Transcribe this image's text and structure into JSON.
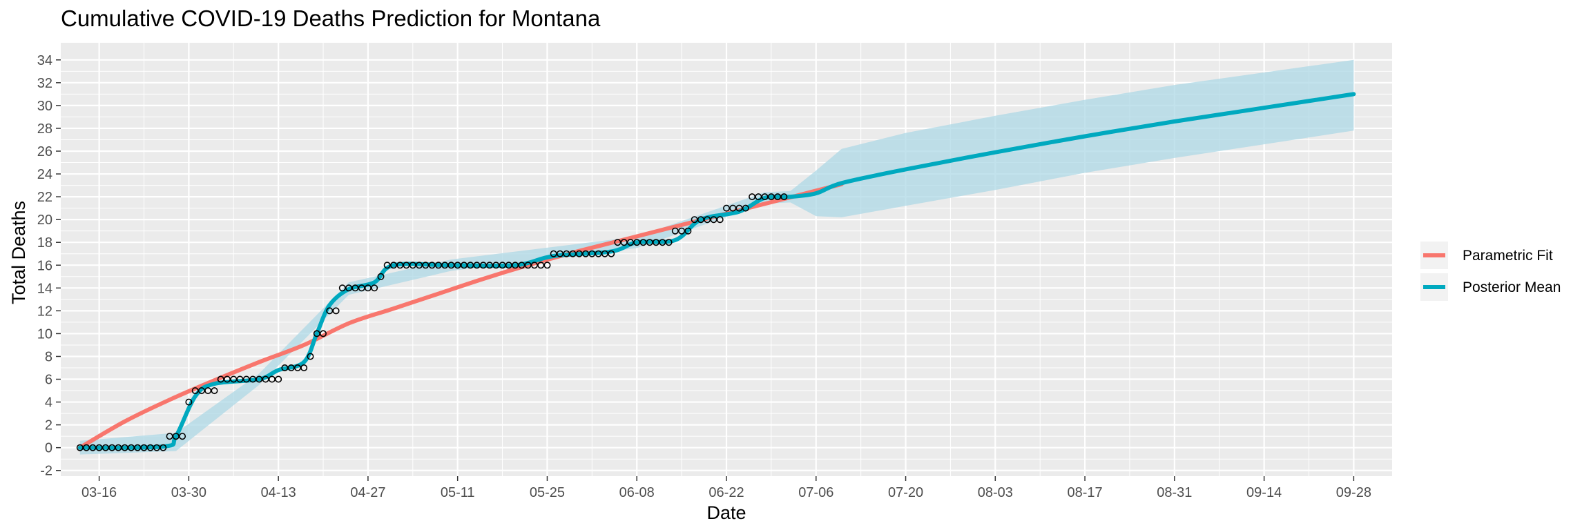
{
  "chart_data": {
    "type": "line",
    "title": "Cumulative COVID-19 Deaths Prediction for Montana",
    "xlabel": "Date",
    "ylabel": "Total Deaths",
    "x_start": "2020-03-13",
    "x_end": "2020-09-28",
    "xlim": [
      "2020-03-10",
      "2020-10-04"
    ],
    "ylim": [
      -2.5,
      35.5
    ],
    "grid": true,
    "legend_position": "right",
    "x_ticks": [
      "03-16",
      "03-30",
      "04-13",
      "04-27",
      "05-11",
      "05-25",
      "06-08",
      "06-22",
      "07-06",
      "07-20",
      "08-03",
      "08-17",
      "08-31",
      "09-14",
      "09-28"
    ],
    "y_ticks": [
      -2,
      0,
      2,
      4,
      6,
      8,
      10,
      12,
      14,
      16,
      18,
      20,
      22,
      24,
      26,
      28,
      30,
      32,
      34
    ],
    "series": [
      {
        "name": "Parametric Fit",
        "color": "#F8766D",
        "points": [
          [
            "2020-03-13",
            0.0
          ],
          [
            "2020-03-20",
            2.3
          ],
          [
            "2020-03-27",
            4.2
          ],
          [
            "2020-04-03",
            5.9
          ],
          [
            "2020-04-10",
            7.5
          ],
          [
            "2020-04-17",
            9.0
          ],
          [
            "2020-04-24",
            10.9
          ],
          [
            "2020-05-01",
            12.2
          ],
          [
            "2020-05-08",
            13.5
          ],
          [
            "2020-05-15",
            14.8
          ],
          [
            "2020-05-22",
            16.0
          ],
          [
            "2020-05-29",
            17.1
          ],
          [
            "2020-06-05",
            18.1
          ],
          [
            "2020-06-12",
            19.1
          ],
          [
            "2020-06-19",
            20.1
          ],
          [
            "2020-06-26",
            21.1
          ],
          [
            "2020-07-03",
            22.1
          ],
          [
            "2020-07-10",
            23.1
          ]
        ]
      },
      {
        "name": "Posterior Mean",
        "color": "#00A9BF",
        "points": [
          [
            "2020-03-13",
            0.0
          ],
          [
            "2020-03-26",
            0.1
          ],
          [
            "2020-03-28",
            1.0
          ],
          [
            "2020-03-31",
            4.5
          ],
          [
            "2020-04-03",
            5.6
          ],
          [
            "2020-04-10",
            6.0
          ],
          [
            "2020-04-13",
            6.8
          ],
          [
            "2020-04-17",
            7.5
          ],
          [
            "2020-04-19",
            10.0
          ],
          [
            "2020-04-21",
            12.5
          ],
          [
            "2020-04-24",
            13.9
          ],
          [
            "2020-04-28",
            14.5
          ],
          [
            "2020-05-01",
            16.0
          ],
          [
            "2020-05-10",
            16.0
          ],
          [
            "2020-05-20",
            16.0
          ],
          [
            "2020-05-26",
            16.8
          ],
          [
            "2020-06-04",
            17.2
          ],
          [
            "2020-06-08",
            18.0
          ],
          [
            "2020-06-14",
            18.2
          ],
          [
            "2020-06-18",
            20.0
          ],
          [
            "2020-06-24",
            20.7
          ],
          [
            "2020-06-28",
            21.9
          ],
          [
            "2020-07-02",
            22.0
          ],
          [
            "2020-07-06",
            22.3
          ],
          [
            "2020-07-10",
            23.2
          ],
          [
            "2020-07-20",
            24.4
          ],
          [
            "2020-08-03",
            25.9
          ],
          [
            "2020-08-17",
            27.3
          ],
          [
            "2020-08-31",
            28.6
          ],
          [
            "2020-09-14",
            29.8
          ],
          [
            "2020-09-28",
            31.0
          ]
        ]
      }
    ],
    "credible_band": {
      "color": "#ADD8E6",
      "points": [
        [
          "2020-03-13",
          -0.6,
          0.6
        ],
        [
          "2020-03-28",
          -0.3,
          1.3
        ],
        [
          "2020-04-10",
          5.5,
          6.5
        ],
        [
          "2020-04-24",
          13.4,
          14.5
        ],
        [
          "2020-05-10",
          15.5,
          16.5
        ],
        [
          "2020-06-08",
          17.5,
          18.5
        ],
        [
          "2020-06-28",
          21.4,
          22.4
        ],
        [
          "2020-07-02",
          21.5,
          22.5
        ],
        [
          "2020-07-06",
          20.3,
          24.3
        ],
        [
          "2020-07-10",
          20.2,
          26.2
        ],
        [
          "2020-07-20",
          21.2,
          27.6
        ],
        [
          "2020-08-03",
          22.6,
          29.1
        ],
        [
          "2020-08-17",
          24.1,
          30.5
        ],
        [
          "2020-08-31",
          25.4,
          31.8
        ],
        [
          "2020-09-14",
          26.6,
          32.9
        ],
        [
          "2020-09-28",
          27.8,
          34.0
        ]
      ]
    },
    "observed": {
      "points": [
        [
          "2020-03-13",
          0
        ],
        [
          "2020-03-14",
          0
        ],
        [
          "2020-03-15",
          0
        ],
        [
          "2020-03-16",
          0
        ],
        [
          "2020-03-17",
          0
        ],
        [
          "2020-03-18",
          0
        ],
        [
          "2020-03-19",
          0
        ],
        [
          "2020-03-20",
          0
        ],
        [
          "2020-03-21",
          0
        ],
        [
          "2020-03-22",
          0
        ],
        [
          "2020-03-23",
          0
        ],
        [
          "2020-03-24",
          0
        ],
        [
          "2020-03-25",
          0
        ],
        [
          "2020-03-26",
          0
        ],
        [
          "2020-03-27",
          1
        ],
        [
          "2020-03-28",
          1
        ],
        [
          "2020-03-29",
          1
        ],
        [
          "2020-03-30",
          4
        ],
        [
          "2020-03-31",
          5
        ],
        [
          "2020-04-01",
          5
        ],
        [
          "2020-04-02",
          5
        ],
        [
          "2020-04-03",
          5
        ],
        [
          "2020-04-04",
          6
        ],
        [
          "2020-04-05",
          6
        ],
        [
          "2020-04-06",
          6
        ],
        [
          "2020-04-07",
          6
        ],
        [
          "2020-04-08",
          6
        ],
        [
          "2020-04-09",
          6
        ],
        [
          "2020-04-10",
          6
        ],
        [
          "2020-04-11",
          6
        ],
        [
          "2020-04-12",
          6
        ],
        [
          "2020-04-13",
          6
        ],
        [
          "2020-04-14",
          7
        ],
        [
          "2020-04-15",
          7
        ],
        [
          "2020-04-16",
          7
        ],
        [
          "2020-04-17",
          7
        ],
        [
          "2020-04-18",
          8
        ],
        [
          "2020-04-19",
          10
        ],
        [
          "2020-04-20",
          10
        ],
        [
          "2020-04-21",
          12
        ],
        [
          "2020-04-22",
          12
        ],
        [
          "2020-04-23",
          14
        ],
        [
          "2020-04-24",
          14
        ],
        [
          "2020-04-25",
          14
        ],
        [
          "2020-04-26",
          14
        ],
        [
          "2020-04-27",
          14
        ],
        [
          "2020-04-28",
          14
        ],
        [
          "2020-04-29",
          15
        ],
        [
          "2020-04-30",
          16
        ],
        [
          "2020-05-01",
          16
        ],
        [
          "2020-05-02",
          16
        ],
        [
          "2020-05-03",
          16
        ],
        [
          "2020-05-04",
          16
        ],
        [
          "2020-05-05",
          16
        ],
        [
          "2020-05-06",
          16
        ],
        [
          "2020-05-07",
          16
        ],
        [
          "2020-05-08",
          16
        ],
        [
          "2020-05-09",
          16
        ],
        [
          "2020-05-10",
          16
        ],
        [
          "2020-05-11",
          16
        ],
        [
          "2020-05-12",
          16
        ],
        [
          "2020-05-13",
          16
        ],
        [
          "2020-05-14",
          16
        ],
        [
          "2020-05-15",
          16
        ],
        [
          "2020-05-16",
          16
        ],
        [
          "2020-05-17",
          16
        ],
        [
          "2020-05-18",
          16
        ],
        [
          "2020-05-19",
          16
        ],
        [
          "2020-05-20",
          16
        ],
        [
          "2020-05-21",
          16
        ],
        [
          "2020-05-22",
          16
        ],
        [
          "2020-05-23",
          16
        ],
        [
          "2020-05-24",
          16
        ],
        [
          "2020-05-25",
          16
        ],
        [
          "2020-05-26",
          17
        ],
        [
          "2020-05-27",
          17
        ],
        [
          "2020-05-28",
          17
        ],
        [
          "2020-05-29",
          17
        ],
        [
          "2020-05-30",
          17
        ],
        [
          "2020-05-31",
          17
        ],
        [
          "2020-06-01",
          17
        ],
        [
          "2020-06-02",
          17
        ],
        [
          "2020-06-03",
          17
        ],
        [
          "2020-06-04",
          17
        ],
        [
          "2020-06-05",
          18
        ],
        [
          "2020-06-06",
          18
        ],
        [
          "2020-06-07",
          18
        ],
        [
          "2020-06-08",
          18
        ],
        [
          "2020-06-09",
          18
        ],
        [
          "2020-06-10",
          18
        ],
        [
          "2020-06-11",
          18
        ],
        [
          "2020-06-12",
          18
        ],
        [
          "2020-06-13",
          18
        ],
        [
          "2020-06-14",
          19
        ],
        [
          "2020-06-15",
          19
        ],
        [
          "2020-06-16",
          19
        ],
        [
          "2020-06-17",
          20
        ],
        [
          "2020-06-18",
          20
        ],
        [
          "2020-06-19",
          20
        ],
        [
          "2020-06-20",
          20
        ],
        [
          "2020-06-21",
          20
        ],
        [
          "2020-06-22",
          21
        ],
        [
          "2020-06-23",
          21
        ],
        [
          "2020-06-24",
          21
        ],
        [
          "2020-06-25",
          21
        ],
        [
          "2020-06-26",
          22
        ],
        [
          "2020-06-27",
          22
        ],
        [
          "2020-06-28",
          22
        ],
        [
          "2020-06-29",
          22
        ],
        [
          "2020-06-30",
          22
        ],
        [
          "2020-07-01",
          22
        ]
      ]
    },
    "panel_background": "#EBEBEB"
  }
}
